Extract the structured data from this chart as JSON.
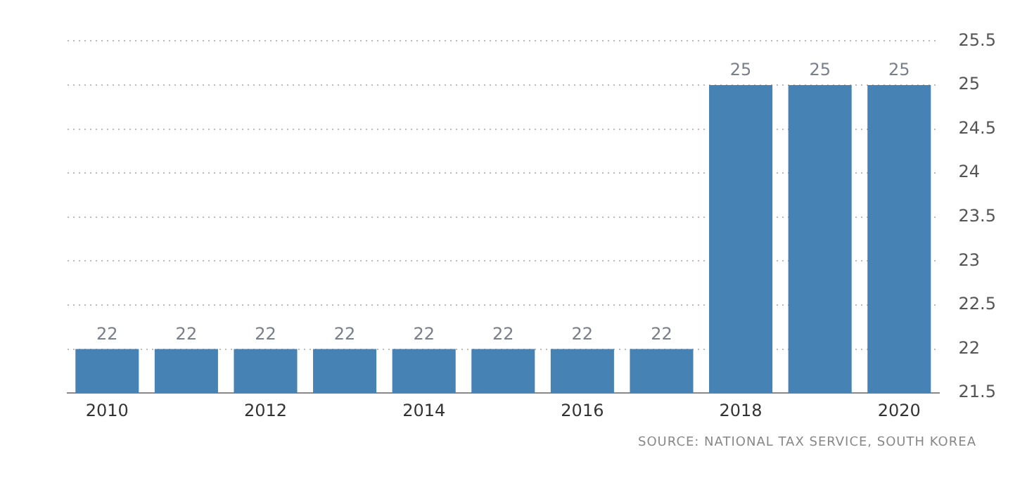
{
  "chart_data": {
    "type": "bar",
    "categories": [
      "2010",
      null,
      "2012",
      null,
      "2014",
      null,
      "2016",
      null,
      "2018",
      null,
      "2020"
    ],
    "values": [
      22,
      22,
      22,
      22,
      22,
      22,
      22,
      22,
      25,
      25,
      25
    ],
    "color": "#4682b4",
    "ylim": [
      21.5,
      25.5
    ],
    "yticks": [
      21.5,
      22,
      22.5,
      23,
      23.5,
      24,
      24.5,
      25,
      25.5
    ],
    "grid": "y",
    "legend": false,
    "data_labels": true,
    "annotations": [
      "SOURCE: NATIONAL TAX SERVICE, SOUTH KOREA"
    ]
  }
}
